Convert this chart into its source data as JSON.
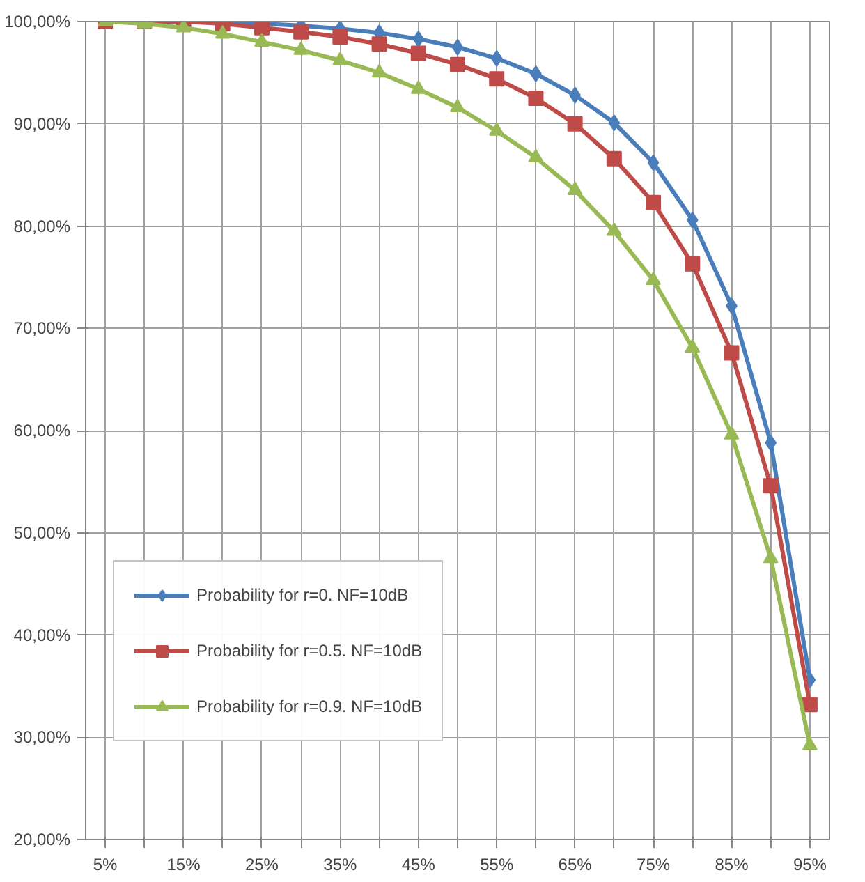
{
  "chart_data": {
    "type": "line",
    "categories": [
      "5%",
      null,
      "15%",
      null,
      "25%",
      null,
      "35%",
      null,
      "45%",
      null,
      "55%",
      null,
      "65%",
      null,
      "75%",
      null,
      "85%",
      null,
      "95%"
    ],
    "ylim": [
      0.2,
      1.0
    ],
    "yticks": [
      {
        "value": 0.2,
        "label": "20,00%"
      },
      {
        "value": 0.3,
        "label": "30,00%"
      },
      {
        "value": 0.4,
        "label": "40,00%"
      },
      {
        "value": 0.5,
        "label": "50,00%"
      },
      {
        "value": 0.6,
        "label": "60,00%"
      },
      {
        "value": 0.7,
        "label": "70,00%"
      },
      {
        "value": 0.8,
        "label": "80,00%"
      },
      {
        "value": 0.9,
        "label": "90,00%"
      },
      {
        "value": 1.0,
        "label": "100,00%"
      }
    ],
    "grid": true,
    "legend": "bottom left",
    "line_style": "solid",
    "series": [
      {
        "name": "Probability for r=0. NF=10dB",
        "color": "#4a7ebb",
        "marker": "diamond",
        "values": [
          null,
          null,
          1.0,
          0.999,
          0.998,
          0.996,
          0.993,
          0.989,
          0.983,
          0.975,
          0.964,
          0.949,
          0.928,
          0.901,
          0.862,
          0.806,
          0.722,
          0.588,
          0.356
        ]
      },
      {
        "name": "Probability for r=0.5. NF=10dB",
        "color": "#be4b48",
        "marker": "square",
        "values": [
          1.0,
          1.0,
          1.0,
          0.998,
          0.994,
          0.99,
          0.985,
          0.978,
          0.969,
          0.958,
          0.944,
          0.925,
          0.9,
          0.866,
          0.823,
          0.763,
          0.676,
          0.546,
          0.332
        ]
      },
      {
        "name": "Probability for r=0.9. NF=10dB",
        "color": "#98b954",
        "marker": "triangle",
        "values": [
          1.0,
          0.998,
          0.994,
          0.988,
          0.98,
          0.972,
          0.962,
          0.95,
          0.934,
          0.916,
          0.893,
          0.867,
          0.835,
          0.795,
          0.747,
          0.681,
          0.596,
          0.475,
          0.292
        ]
      }
    ]
  }
}
